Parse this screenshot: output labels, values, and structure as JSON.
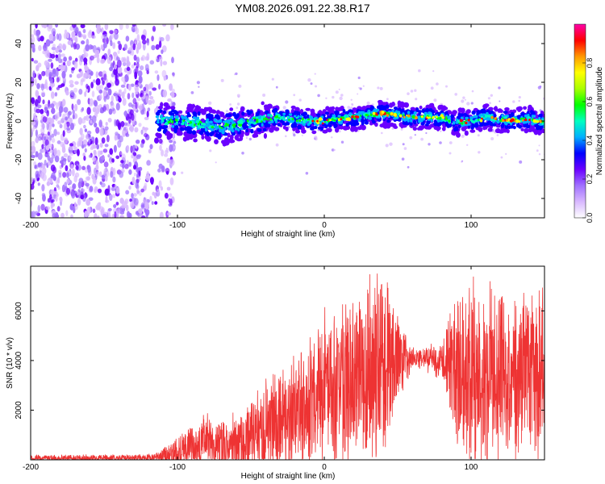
{
  "title": "YM08.2026.091.22.38.R17",
  "colors": {
    "snr_line": "#ee3333",
    "axis": "#000000",
    "colormap": [
      "#ffffff",
      "#d8b8ff",
      "#a070ff",
      "#6a00ff",
      "#0000ff",
      "#00b0ff",
      "#00ffc0",
      "#00ff00",
      "#aaff00",
      "#ffff00",
      "#ff9900",
      "#ff0000",
      "#ff00aa"
    ]
  },
  "chart_data": [
    {
      "type": "heatmap",
      "name": "spectrogram",
      "xlabel": "Height of straight line (km)",
      "ylabel": "Frequency (Hz)",
      "xlim": [
        -200,
        150
      ],
      "ylim": [
        -50,
        50
      ],
      "xticks": [
        -200,
        -100,
        0,
        100
      ],
      "yticks": [
        -40,
        -20,
        0,
        20,
        40
      ],
      "colorbar": {
        "label": "Normalized spectral amplitude",
        "range": [
          0.0,
          1.0
        ],
        "ticks": [
          "0.0",
          "0.2",
          "0.4",
          "0.6",
          "0.8"
        ]
      },
      "band_center_hz": {
        "x": [
          -110,
          -100,
          -90,
          -80,
          -70,
          -60,
          -50,
          -40,
          -30,
          -20,
          -10,
          0,
          10,
          20,
          30,
          40,
          50,
          60,
          70,
          80,
          90,
          100,
          110,
          120,
          130,
          140,
          150
        ],
        "y": [
          0,
          0,
          -1,
          -2,
          -3,
          -2,
          0,
          1,
          2,
          1,
          0,
          0,
          1,
          2,
          3,
          4,
          3,
          2,
          2,
          2,
          -1,
          0,
          2,
          1,
          0,
          1,
          -1
        ]
      },
      "noise_region_x": [
        -200,
        -110
      ]
    },
    {
      "type": "line",
      "name": "snr",
      "xlabel": "Height of straight line (km)",
      "ylabel": "SNR (10 * v/v)",
      "xlim": [
        -200,
        150
      ],
      "ylim": [
        0,
        7800
      ],
      "xticks": [
        -200,
        -100,
        0,
        100
      ],
      "yticks": [
        2000,
        4000,
        6000
      ],
      "series": [
        {
          "name": "SNR",
          "envelope_x": [
            -200,
            -160,
            -120,
            -110,
            -100,
            -90,
            -80,
            -70,
            -60,
            -50,
            -40,
            -30,
            -20,
            -10,
            0,
            10,
            20,
            30,
            40,
            50,
            60,
            70,
            80,
            90,
            100,
            110,
            120,
            130,
            140,
            150
          ],
          "mean": [
            50,
            60,
            80,
            150,
            350,
            600,
            700,
            600,
            650,
            900,
            1200,
            1500,
            1900,
            2300,
            2700,
            3000,
            3200,
            3600,
            3900,
            4100,
            4100,
            4100,
            4000,
            3600,
            3500,
            3600,
            3600,
            3500,
            3600,
            3500
          ],
          "amplitude": [
            150,
            150,
            150,
            300,
            600,
            900,
            1100,
            1000,
            1200,
            1500,
            1800,
            2000,
            2200,
            2500,
            2800,
            3000,
            3200,
            3500,
            3600,
            2000,
            400,
            500,
            700,
            3000,
            3500,
            3400,
            3500,
            3300,
            3400,
            3300
          ]
        }
      ]
    }
  ]
}
